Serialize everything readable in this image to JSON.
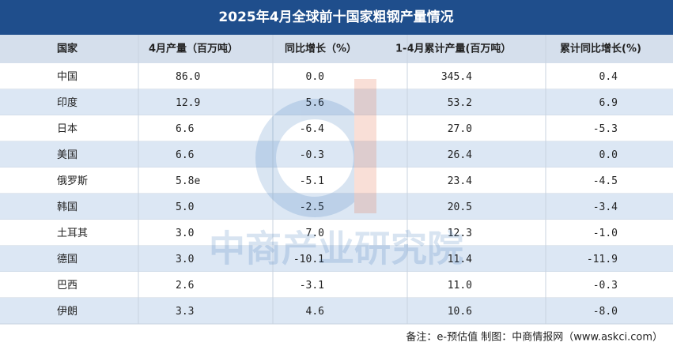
{
  "title": "2025年4月全球前十国家粗钢产量情况",
  "table": {
    "header": [
      "国家",
      "4月产量（百万吨）",
      "同比增长（%）",
      "1-4月累计产量(百万吨）",
      "累计同比增长(%)"
    ],
    "rows": [
      [
        "中国",
        "86.0",
        "0.0",
        "345.4",
        "0.4"
      ],
      [
        "印度",
        "12.9",
        "5.6",
        "53.2",
        "6.9"
      ],
      [
        "日本",
        "6.6",
        "-6.4",
        "27.0",
        "-5.3"
      ],
      [
        "美国",
        "6.6",
        "-0.3",
        "26.4",
        "0.0"
      ],
      [
        "俄罗斯",
        "5.8e",
        "-5.1",
        "23.4",
        "-4.5"
      ],
      [
        "韩国",
        "5.0",
        "-2.5",
        "20.5",
        "-3.4"
      ],
      [
        "土耳其",
        "3.0",
        "7.0",
        "12.3",
        "-1.0"
      ],
      [
        "德国",
        "3.0",
        "-10.1",
        "11.4",
        "-11.9"
      ],
      [
        "巴西",
        "2.6",
        "-3.1",
        "11.0",
        "-0.3"
      ],
      [
        "伊朗",
        "3.3",
        "4.6",
        "10.6",
        "-8.0"
      ]
    ]
  },
  "watermark": "中商产业研究院",
  "footer": "备注：e-预估值  制图：中商情报网（www.askci.com）"
}
